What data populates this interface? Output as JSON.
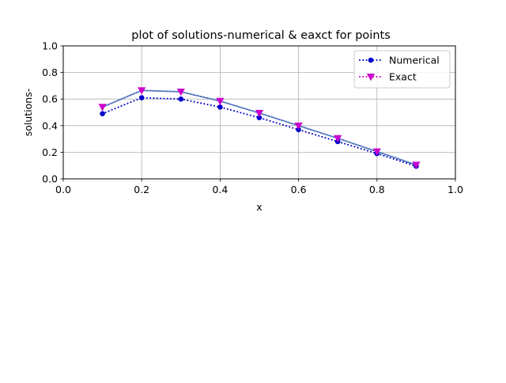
{
  "chart_data": {
    "type": "line",
    "title": "plot of solutions-numerical & eaxct for  points",
    "xlabel": "x",
    "ylabel": "solutions-",
    "xlim": [
      0.0,
      1.0
    ],
    "ylim": [
      0.0,
      1.0
    ],
    "xticks": [
      "0.0",
      "0.2",
      "0.4",
      "0.6",
      "0.8",
      "1.0"
    ],
    "yticks": [
      "0.0",
      "0.2",
      "0.4",
      "0.6",
      "0.8",
      "1.0"
    ],
    "grid": true,
    "legend_position": "top-right",
    "x": [
      0.1,
      0.2,
      0.3,
      0.4,
      0.5,
      0.6,
      0.7,
      0.8,
      0.9
    ],
    "series": [
      {
        "name": "Numerical",
        "values": [
          0.49,
          0.61,
          0.6,
          0.54,
          0.46,
          0.37,
          0.28,
          0.19,
          0.095
        ],
        "color": "#0000cc",
        "linestyle": "dotted",
        "marker": "circle"
      },
      {
        "name": "Exact",
        "values": [
          0.54,
          0.665,
          0.655,
          0.585,
          0.495,
          0.4,
          0.305,
          0.205,
          0.105
        ],
        "color": "#cc00cc",
        "linestyle": "dotted",
        "marker": "triangle-down"
      },
      {
        "values": [
          0.54,
          0.665,
          0.655,
          0.585,
          0.495,
          0.4,
          0.305,
          0.205,
          0.105
        ],
        "color": "#4a7fbf",
        "linestyle": "solid",
        "marker": "none"
      }
    ]
  }
}
